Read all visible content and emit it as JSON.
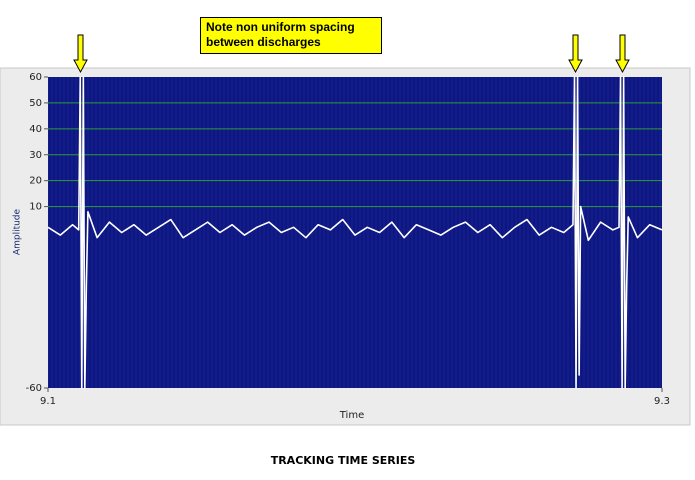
{
  "chart_data": {
    "type": "line",
    "annotation": "Note non uniform spacing between discharges",
    "caption": "TRACKING TIME SERIES",
    "x_label": "Time",
    "y_label": "Amplitude",
    "xlim": [
      9.1,
      9.3
    ],
    "xticks": [
      9.1,
      9.3
    ],
    "ylim": [
      -60,
      60
    ],
    "yticks": [
      60,
      50,
      40,
      30,
      20,
      10,
      -60
    ],
    "grid": true,
    "grid_color": "#2f9a3a",
    "background": "#121c8c",
    "series": [
      {
        "color": "#ffffff",
        "x": [
          9.1,
          9.104,
          9.108,
          9.11,
          9.1105,
          9.111,
          9.1115,
          9.112,
          9.1125,
          9.113,
          9.116,
          9.12,
          9.124,
          9.128,
          9.132,
          9.136,
          9.14,
          9.144,
          9.148,
          9.152,
          9.156,
          9.16,
          9.164,
          9.168,
          9.172,
          9.176,
          9.18,
          9.184,
          9.188,
          9.192,
          9.196,
          9.2,
          9.204,
          9.208,
          9.212,
          9.216,
          9.22,
          9.224,
          9.228,
          9.232,
          9.236,
          9.24,
          9.244,
          9.248,
          9.252,
          9.256,
          9.26,
          9.264,
          9.268,
          9.271,
          9.2715,
          9.272,
          9.2725,
          9.273,
          9.2735,
          9.276,
          9.28,
          9.284,
          9.286,
          9.2865,
          9.287,
          9.2875,
          9.288,
          9.2885,
          9.289,
          9.292,
          9.296,
          9.3
        ],
        "values": [
          2,
          -1,
          3,
          1,
          60,
          -60,
          60,
          -60,
          -20,
          8,
          -2,
          4,
          0,
          3,
          -1,
          2,
          5,
          -2,
          1,
          4,
          0,
          3,
          -1,
          2,
          4,
          0,
          2,
          -2,
          3,
          1,
          5,
          -1,
          2,
          0,
          4,
          -2,
          3,
          1,
          -1,
          2,
          4,
          0,
          3,
          -2,
          2,
          5,
          -1,
          2,
          0,
          3,
          60,
          -60,
          60,
          -55,
          10,
          -3,
          4,
          1,
          2,
          60,
          -60,
          60,
          -60,
          -20,
          6,
          -2,
          3,
          1
        ]
      }
    ]
  }
}
